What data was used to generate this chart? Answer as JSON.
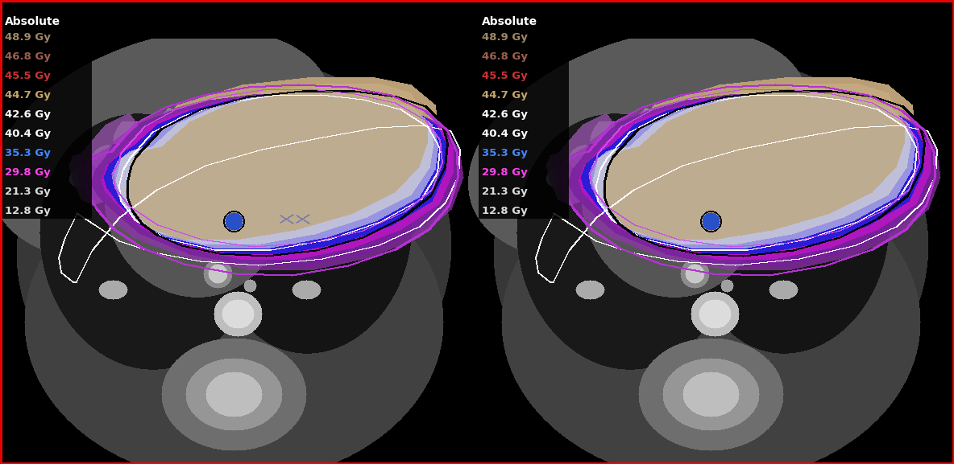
{
  "fig_width": 11.84,
  "fig_height": 5.77,
  "dpi": 100,
  "bg_color": "#000000",
  "legend_entries": [
    {
      "label": "48.9 Gy",
      "color": "#a08868"
    },
    {
      "label": "46.8 Gy",
      "color": "#9c6050"
    },
    {
      "label": "45.5 Gy",
      "color": "#cc3333"
    },
    {
      "label": "44.7 Gy",
      "color": "#c8a468"
    },
    {
      "label": "42.6 Gy",
      "color": "#ffffff"
    },
    {
      "label": "40.4 Gy",
      "color": "#ffffff"
    },
    {
      "label": "35.3 Gy",
      "color": "#4488ff"
    },
    {
      "label": "29.8 Gy",
      "color": "#ff44ee"
    },
    {
      "label": "21.3 Gy",
      "color": "#dddddd"
    },
    {
      "label": "12.8 Gy",
      "color": "#dddddd"
    }
  ],
  "legend_title": "Absolute",
  "legend_title_color": "#ffffff",
  "legend_title_fontsize": 10,
  "legend_fontsize": 9.5
}
